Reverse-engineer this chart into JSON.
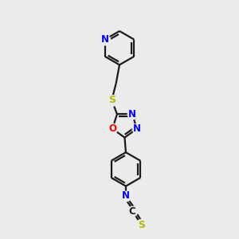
{
  "bg_color": "#ebebeb",
  "bond_color": "#1a1a1a",
  "N_color": "#0000ff",
  "O_color": "#ff0000",
  "S_color": "#b8b800",
  "line_width": 1.6,
  "figsize": [
    3.0,
    3.0
  ],
  "dpi": 100,
  "xlim": [
    0,
    10
  ],
  "ylim": [
    0,
    10
  ]
}
